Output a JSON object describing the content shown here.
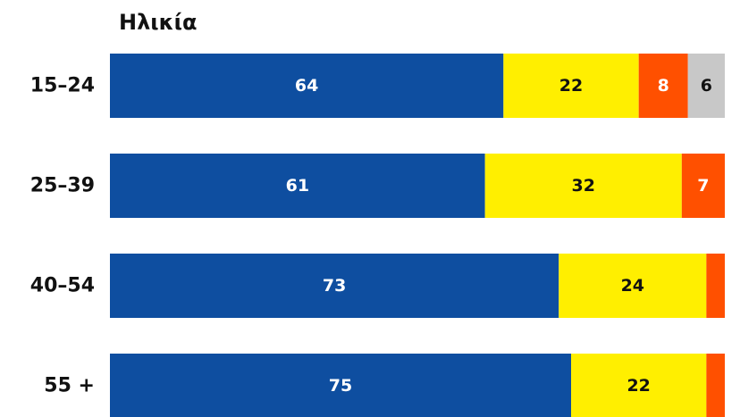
{
  "chart_data": {
    "type": "stacked-bar-horizontal",
    "title": "Ηλικία",
    "categories": [
      "15–24",
      "25–39",
      "40–54",
      "55 +"
    ],
    "xlim": [
      0,
      100
    ],
    "series": [
      {
        "color": "#0e4ea0",
        "label_color": "#ffffff",
        "values": [
          64,
          61,
          73,
          75
        ]
      },
      {
        "color": "#ffef00",
        "label_color": "#111111",
        "values": [
          22,
          32,
          24,
          22
        ]
      },
      {
        "color": "#ff5000",
        "label_color": "#ffffff",
        "values": [
          8,
          7,
          3,
          3
        ]
      },
      {
        "color": "#c8c8c8",
        "label_color": "#111111",
        "values": [
          6,
          null,
          null,
          null
        ]
      }
    ]
  }
}
